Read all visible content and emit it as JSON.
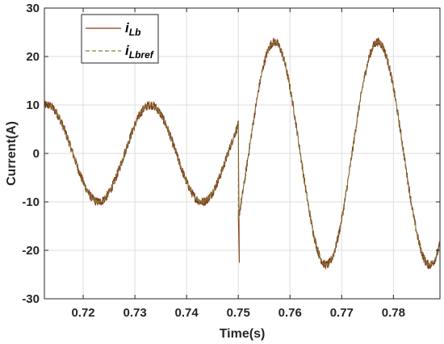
{
  "chart_data": {
    "type": "line",
    "title": "",
    "xlabel": "Time(s)",
    "ylabel": "Current(A)",
    "xlim": [
      0.7125,
      0.789
    ],
    "ylim": [
      -30,
      30
    ],
    "xticks": [
      0.72,
      0.73,
      0.74,
      0.75,
      0.76,
      0.77,
      0.78
    ],
    "xtick_labels": [
      "0.72",
      "0.73",
      "0.74",
      "0.75",
      "0.76",
      "0.77",
      "0.78"
    ],
    "yticks": [
      -30,
      -20,
      -10,
      0,
      10,
      20,
      30
    ],
    "ytick_labels": [
      "-30",
      "-20",
      "-10",
      "0",
      "10",
      "20",
      "30"
    ],
    "grid": true,
    "legend_position": "top-left",
    "frequency_hz": 50,
    "series": [
      {
        "name": "i_Lb",
        "legend_main": "i",
        "legend_sub": "Lb",
        "color": "#8B3A1A",
        "dash": "solid",
        "segments": [
          {
            "t_start": 0.7125,
            "t_end": 0.75,
            "amplitude": 10,
            "peak_time": 0.733
          },
          {
            "t_start": 0.75,
            "t_end": 0.789,
            "amplitude": 23,
            "peak_time": 0.757
          }
        ],
        "transient": {
          "t": 0.7502,
          "min": -22.5
        }
      },
      {
        "name": "i_Lbref",
        "legend_main": "i",
        "legend_sub": "Lbref",
        "color": "#6E8B3D",
        "dash": "dashed",
        "segments": [
          {
            "t_start": 0.7125,
            "t_end": 0.75,
            "amplitude": 10,
            "peak_time": 0.733
          },
          {
            "t_start": 0.75,
            "t_end": 0.789,
            "amplitude": 23,
            "peak_time": 0.757
          }
        ]
      }
    ]
  }
}
